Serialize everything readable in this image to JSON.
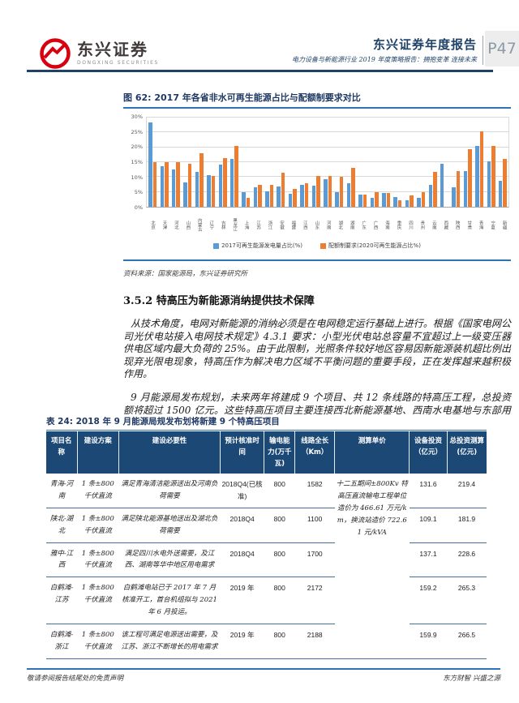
{
  "header": {
    "logo_cn": "东兴证券",
    "logo_en": "DONGXING SECURITIES",
    "report_title": "东兴证券年度报告",
    "report_subtitle": "电力设备与新能源行业 2019 年度策略报告：拥抱变革 连接未来",
    "page_number": "P47"
  },
  "figure": {
    "title": "图 62: 2017 年各省非水可再生能源占比与配额制要求对比",
    "source": "资料来源：国家能源局，东兴证券研究所"
  },
  "chart_data": {
    "type": "bar",
    "title": "2017 年各省非水可再生能源占比与配额制要求对比",
    "categories": [
      "北京",
      "天津",
      "河北",
      "山西",
      "内蒙古",
      "辽宁",
      "吉林",
      "黑龙江",
      "上海",
      "江苏",
      "浙江",
      "安徽",
      "福建",
      "江西",
      "山东",
      "河南",
      "湖北",
      "湖南",
      "广东",
      "广西",
      "海南",
      "重庆",
      "四川",
      "贵州",
      "云南",
      "西藏",
      "陕西",
      "甘肃",
      "青海",
      "宁夏",
      "新疆"
    ],
    "series": [
      {
        "name": "2017可再生能源发电量占比(%)",
        "color": "#5B9BD5",
        "values": [
          28.5,
          13.7,
          12.5,
          8.3,
          11.8,
          10.6,
          14.3,
          16.0,
          4.8,
          6.5,
          5.2,
          6.8,
          4.3,
          7.5,
          7.2,
          9.2,
          4.8,
          8.0,
          4.2,
          3.0,
          4.7,
          3.4,
          2.1,
          3.1,
          7.3,
          14.5,
          6.5,
          12.0,
          20.5,
          15.3,
          8.8
        ]
      },
      {
        "name": "配额制要求(2020可再生能源占比%)",
        "color": "#ED7D31",
        "values": [
          15,
          15,
          15,
          14.5,
          18,
          10.5,
          16.5,
          20.5,
          3,
          7.5,
          7.4,
          11.5,
          6,
          8,
          10.5,
          10.5,
          10,
          13,
          4.1,
          5,
          4.7,
          2.3,
          3.7,
          5,
          11.6,
          null,
          12,
          19.3,
          25.5,
          20.4,
          16.2
        ]
      }
    ],
    "ylim": [
      0,
      30
    ],
    "ytick_step": 5,
    "yticks": [
      "0%",
      "5%",
      "10%",
      "15%",
      "20%",
      "25%",
      "30%"
    ],
    "grid": true,
    "legend_position": "bottom"
  },
  "section": {
    "heading": "3.5.2 特高压为新能源消纳提供技术保障",
    "p1": "从技术角度，电网对新能源的消纳必须是在电网稳定运行基础上进行。根据《国家电网公司光伏电站接入电网技术规定》4.3.1 要求：小型光伏电站总容量不宜超过上一级变压器供电区域内最大负荷的 25%。由于此限制，光照条件较好地区容易因新能源装机超比例出现弃光限电现象，特高压作为解决电力区域不平衡问题的重要手段，正在发挥越来越积极作用。",
    "p2": "9 月能源局发布规划，未来两年将建成 9 个项目、共 12 条线路的特高压工程，总投资额将超过 1500 亿元。这些特高压项目主要连接西北新能源基地、西南水电基地与东部用电省份，对于新能源消纳有着极大推动作用。"
  },
  "table": {
    "title": "表 24: 2018 年 9 月能源局规发布划将新建 9 个特高压项目",
    "headers": [
      "项目名称",
      "建设方案",
      "建设必要性",
      "预计核准时间",
      "输电能力(万千瓦)",
      "线路全长（Km）",
      "测算单价",
      "设备投资（亿元）",
      "总投资测算(亿元)"
    ],
    "col_widths": [
      "7%",
      "9.5%",
      "23%",
      "10%",
      "7%",
      "9%",
      "17%",
      "8.5%",
      "9%"
    ],
    "unit_price_note": "十二五期间±800Kv 特高压直流输电工程单位造价为 466.61 万元/km，换流站造价 722.61 元/kVA",
    "rows": [
      {
        "name": "青海-河南",
        "plan": "1 条±800千伏直流",
        "necessity": "满足青海清洁能源送出及河南负荷需要",
        "approval": "2018Q4(已核准)",
        "capacity": "800",
        "length": "1582",
        "equip": "131.6",
        "total": "219.4"
      },
      {
        "name": "陕北-湖北",
        "plan": "1 条±800千伏直流",
        "necessity": "满足陕北能源基地送出及湖北负荷需要",
        "approval": "2018Q4",
        "capacity": "800",
        "length": "1100",
        "equip": "109.1",
        "total": "181.9"
      },
      {
        "name": "雅中-江西",
        "plan": "1 条±800千伏直流",
        "necessity": "满足四川水电外送需要，及江西、湖南等华中地区用电需求",
        "approval": "2018Q4",
        "capacity": "800",
        "length": "1700",
        "equip": "137.1",
        "total": "228.6"
      },
      {
        "name": "白鹤滩-江苏",
        "plan": "1 条±800千伏直流",
        "necessity": "白鹤滩电站已于 2017 年 7 月核准开工，首台机组拟与 2021 年 6 月投运。",
        "approval": "2019 年",
        "capacity": "800",
        "length": "2172",
        "equip": "159.2",
        "total": "265.3"
      },
      {
        "name": "白鹤滩-浙江",
        "plan": "1 条±800千伏直流",
        "necessity": "该工程可满足电源送出需要，及江苏、浙江不断增长的用电需求",
        "approval": "2019 年",
        "capacity": "800",
        "length": "2188",
        "equip": "159.9",
        "total": "266.5"
      }
    ]
  },
  "footer": {
    "left": "敬请参阅报告结尾处的免责声明",
    "right": "东方财智 兴盛之源"
  },
  "colors": {
    "navy": "#1F4268",
    "rule_blue": "#2E74B5",
    "table_header_bg": "#1B4874",
    "table_line": "#41719C",
    "bar_blue": "#5B9BD5",
    "bar_orange": "#ED7D31",
    "logo_red": "#D7000F"
  }
}
